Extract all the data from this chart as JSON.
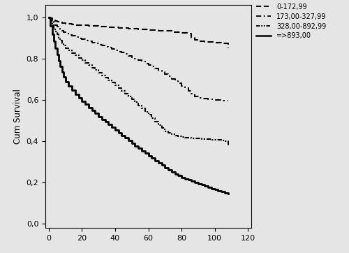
{
  "background_color": "#e5e5e5",
  "fig_background_color": "#e5e5e5",
  "ylabel": "Cum Survival",
  "xlabel": "",
  "ylim": [
    -0.02,
    1.06
  ],
  "xlim": [
    -2,
    122
  ],
  "yticks": [
    0.0,
    0.2,
    0.4,
    0.6,
    0.8,
    1.0
  ],
  "ytick_labels": [
    "0,0",
    "0,2",
    "0,4",
    "0,6",
    "0,8",
    "1,0"
  ],
  "xticks": [
    0,
    20,
    40,
    60,
    80,
    100,
    120
  ],
  "legend_labels": [
    "0-172,99",
    "173,00-327,99",
    "328,00-892,99",
    "=>893,00"
  ],
  "curves": {
    "q1": {
      "x": [
        0,
        1,
        2,
        3,
        4,
        5,
        6,
        7,
        8,
        9,
        10,
        12,
        14,
        16,
        18,
        20,
        22,
        24,
        26,
        28,
        30,
        32,
        34,
        36,
        38,
        40,
        42,
        44,
        46,
        48,
        50,
        52,
        54,
        56,
        58,
        60,
        62,
        64,
        66,
        68,
        70,
        72,
        74,
        76,
        78,
        80,
        82,
        84,
        86,
        88,
        90,
        92,
        94,
        96,
        98,
        100,
        102,
        104,
        106,
        108
      ],
      "y": [
        1.0,
        0.995,
        0.99,
        0.987,
        0.984,
        0.981,
        0.978,
        0.976,
        0.974,
        0.972,
        0.97,
        0.968,
        0.966,
        0.964,
        0.963,
        0.962,
        0.961,
        0.96,
        0.959,
        0.958,
        0.957,
        0.956,
        0.955,
        0.954,
        0.952,
        0.951,
        0.95,
        0.949,
        0.948,
        0.947,
        0.946,
        0.944,
        0.943,
        0.942,
        0.941,
        0.94,
        0.939,
        0.938,
        0.937,
        0.936,
        0.935,
        0.934,
        0.93,
        0.928,
        0.927,
        0.926,
        0.924,
        0.922,
        0.9,
        0.892,
        0.885,
        0.884,
        0.882,
        0.881,
        0.88,
        0.878,
        0.877,
        0.876,
        0.875,
        0.85
      ],
      "linewidth": 1.5
    },
    "q2": {
      "x": [
        0,
        1,
        2,
        3,
        4,
        5,
        6,
        7,
        8,
        9,
        10,
        12,
        14,
        16,
        18,
        20,
        22,
        24,
        26,
        28,
        30,
        32,
        34,
        36,
        38,
        40,
        42,
        44,
        46,
        48,
        50,
        52,
        54,
        56,
        58,
        60,
        62,
        64,
        66,
        68,
        70,
        72,
        74,
        76,
        78,
        80,
        82,
        84,
        86,
        88,
        90,
        92,
        94,
        96,
        98,
        100,
        102,
        104,
        106,
        108
      ],
      "y": [
        1.0,
        0.99,
        0.98,
        0.97,
        0.962,
        0.955,
        0.947,
        0.94,
        0.934,
        0.928,
        0.922,
        0.916,
        0.91,
        0.904,
        0.899,
        0.894,
        0.889,
        0.884,
        0.879,
        0.874,
        0.869,
        0.864,
        0.859,
        0.853,
        0.847,
        0.841,
        0.835,
        0.829,
        0.822,
        0.815,
        0.808,
        0.801,
        0.793,
        0.785,
        0.777,
        0.769,
        0.761,
        0.752,
        0.743,
        0.734,
        0.724,
        0.714,
        0.703,
        0.692,
        0.68,
        0.668,
        0.656,
        0.643,
        0.629,
        0.618,
        0.61,
        0.608,
        0.606,
        0.604,
        0.602,
        0.6,
        0.599,
        0.598,
        0.597,
        0.595
      ],
      "linewidth": 1.5
    },
    "q3": {
      "x": [
        0,
        1,
        2,
        3,
        4,
        5,
        6,
        7,
        8,
        9,
        10,
        12,
        14,
        16,
        18,
        20,
        22,
        24,
        26,
        28,
        30,
        32,
        34,
        36,
        38,
        40,
        42,
        44,
        46,
        48,
        50,
        52,
        54,
        56,
        58,
        60,
        62,
        64,
        66,
        68,
        70,
        72,
        74,
        76,
        78,
        80,
        82,
        84,
        86,
        88,
        90,
        92,
        94,
        96,
        98,
        100,
        102,
        104,
        106,
        108
      ],
      "y": [
        1.0,
        0.982,
        0.964,
        0.948,
        0.932,
        0.917,
        0.903,
        0.889,
        0.876,
        0.864,
        0.852,
        0.84,
        0.828,
        0.816,
        0.804,
        0.792,
        0.78,
        0.768,
        0.756,
        0.744,
        0.732,
        0.72,
        0.708,
        0.696,
        0.683,
        0.67,
        0.657,
        0.644,
        0.631,
        0.617,
        0.603,
        0.589,
        0.574,
        0.559,
        0.543,
        0.527,
        0.511,
        0.495,
        0.479,
        0.463,
        0.447,
        0.44,
        0.433,
        0.428,
        0.423,
        0.42,
        0.418,
        0.416,
        0.414,
        0.413,
        0.412,
        0.411,
        0.41,
        0.409,
        0.408,
        0.407,
        0.406,
        0.404,
        0.4,
        0.38
      ],
      "linewidth": 1.5
    },
    "q4": {
      "x": [
        0,
        1,
        2,
        3,
        4,
        5,
        6,
        7,
        8,
        9,
        10,
        12,
        14,
        16,
        18,
        20,
        22,
        24,
        26,
        28,
        30,
        32,
        34,
        36,
        38,
        40,
        42,
        44,
        46,
        48,
        50,
        52,
        54,
        56,
        58,
        60,
        62,
        64,
        66,
        68,
        70,
        72,
        74,
        76,
        78,
        80,
        82,
        84,
        86,
        88,
        90,
        92,
        94,
        96,
        98,
        100,
        102,
        104,
        106,
        108
      ],
      "y": [
        1.0,
        0.96,
        0.92,
        0.885,
        0.852,
        0.82,
        0.79,
        0.762,
        0.736,
        0.712,
        0.689,
        0.667,
        0.647,
        0.628,
        0.611,
        0.594,
        0.578,
        0.563,
        0.548,
        0.534,
        0.52,
        0.506,
        0.493,
        0.48,
        0.467,
        0.454,
        0.441,
        0.428,
        0.415,
        0.402,
        0.389,
        0.377,
        0.365,
        0.353,
        0.341,
        0.329,
        0.317,
        0.305,
        0.294,
        0.283,
        0.272,
        0.261,
        0.251,
        0.241,
        0.233,
        0.225,
        0.218,
        0.212,
        0.206,
        0.2,
        0.194,
        0.188,
        0.182,
        0.176,
        0.17,
        0.165,
        0.16,
        0.155,
        0.15,
        0.145
      ],
      "linewidth": 2.0
    }
  }
}
